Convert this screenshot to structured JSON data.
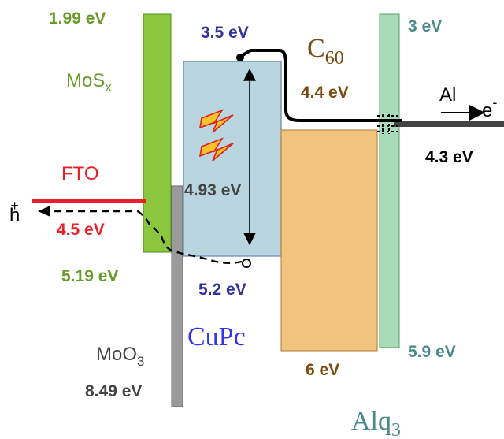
{
  "colors": {
    "mos": "#8cc63f",
    "mos_label": "#6a9a2a",
    "fto": "#e8202a",
    "moo3_fill": "#9a9a9a",
    "moo3_label": "#444444",
    "cupc_fill": "#b9d5e0",
    "cupc_label": "#3333a0",
    "cupc_name": "#3333ee",
    "c60_fill": "#f0c47e",
    "c60_label": "#7a4a10",
    "alq3_fill": "#a8dcb8",
    "alq3_label": "#4a8a8a",
    "al": "#333333",
    "text": "#000000"
  },
  "labels": {
    "mos_lumo": "1.99 eV",
    "mos_name": "MoS",
    "mos_sub": "x",
    "mos_homo": "5.19 eV",
    "fto_name": "FTO",
    "fto_level": "4.5 eV",
    "hole": "h",
    "hole_sup": "+",
    "moo3_name": "MoO",
    "moo3_sub": "3",
    "moo3_level": "8.49 eV",
    "cupc_lumo": "3.5 eV",
    "cupc_gap": "4.93 eV",
    "cupc_homo": "5.2 eV",
    "cupc_name": "CuPc",
    "c60_name": "C",
    "c60_sub": "60",
    "c60_lumo": "4.4 eV",
    "c60_homo": "6 eV",
    "alq3_lumo": "3 eV",
    "alq3_homo": "5.9 eV",
    "alq3_name": "Alq",
    "alq3_sub": "3",
    "al_name": "Al",
    "al_level": "4.3 eV",
    "electron": "e",
    "electron_sup": "-"
  }
}
